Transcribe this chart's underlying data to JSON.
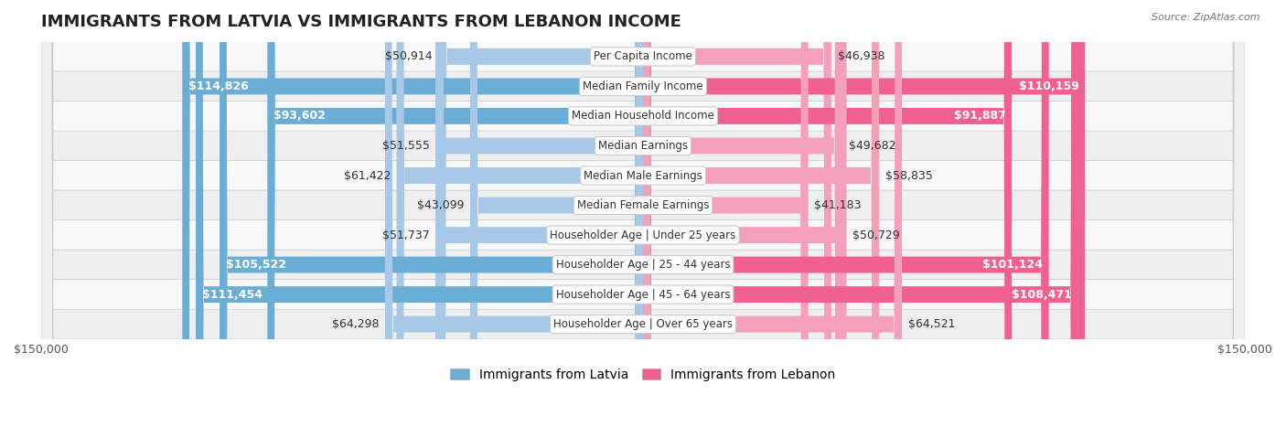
{
  "title": "IMMIGRANTS FROM LATVIA VS IMMIGRANTS FROM LEBANON INCOME",
  "source": "Source: ZipAtlas.com",
  "categories": [
    "Per Capita Income",
    "Median Family Income",
    "Median Household Income",
    "Median Earnings",
    "Median Male Earnings",
    "Median Female Earnings",
    "Householder Age | Under 25 years",
    "Householder Age | 25 - 44 years",
    "Householder Age | 45 - 64 years",
    "Householder Age | Over 65 years"
  ],
  "latvia_values": [
    50914,
    114826,
    93602,
    51555,
    61422,
    43099,
    51737,
    105522,
    111454,
    64298
  ],
  "lebanon_values": [
    46938,
    110159,
    91887,
    49682,
    58835,
    41183,
    50729,
    101124,
    108471,
    64521
  ],
  "max_val": 150000,
  "latvia_color_light": "#a8c8e8",
  "latvia_color_dark": "#6aaed6",
  "lebanon_color_light": "#f4a0b8",
  "lebanon_color_dark": "#f06090",
  "bar_height": 0.55,
  "bg_color": "#f5f5f5",
  "row_bg_even": "#ffffff",
  "row_bg_odd": "#f0f0f0",
  "label_fontsize": 9,
  "title_fontsize": 13,
  "legend_fontsize": 10
}
